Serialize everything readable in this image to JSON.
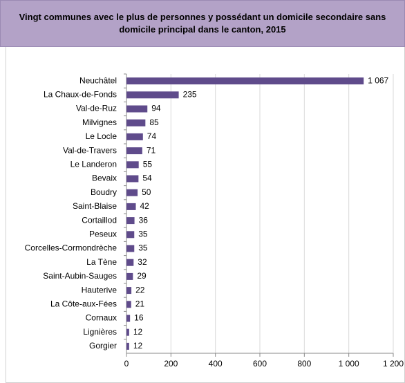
{
  "chart_data": {
    "type": "barh",
    "title": "Vingt communes avec le plus de personnes y possédant un domicile secondaire sans domicile principal dans le canton, 2015",
    "categories": [
      "Neuchâtel",
      "La Chaux-de-Fonds",
      "Val-de-Ruz",
      "Milvignes",
      "Le Locle",
      "Val-de-Travers",
      "Le Landeron",
      "Bevaix",
      "Boudry",
      "Saint-Blaise",
      "Cortaillod",
      "Peseux",
      "Corcelles-Cormondrèche",
      "La Tène",
      "Saint-Aubin-Sauges",
      "Hauterive",
      "La Côte-aux-Fées",
      "Cornaux",
      "Lignières",
      "Gorgier"
    ],
    "values": [
      1067,
      235,
      94,
      85,
      74,
      71,
      55,
      54,
      50,
      42,
      36,
      35,
      35,
      32,
      29,
      22,
      21,
      16,
      12,
      12
    ],
    "value_labels": [
      "1 067",
      "235",
      "94",
      "85",
      "74",
      "71",
      "55",
      "54",
      "50",
      "42",
      "36",
      "35",
      "35",
      "32",
      "29",
      "22",
      "21",
      "16",
      "12",
      "12"
    ],
    "color": "#5f4b8b",
    "xlim": [
      0,
      1200
    ],
    "xticks": [
      0,
      200,
      400,
      600,
      800,
      {
        "value": 1000,
        "label": "1 000"
      },
      {
        "value": 1200,
        "label": "1 200"
      }
    ],
    "grid": true
  }
}
